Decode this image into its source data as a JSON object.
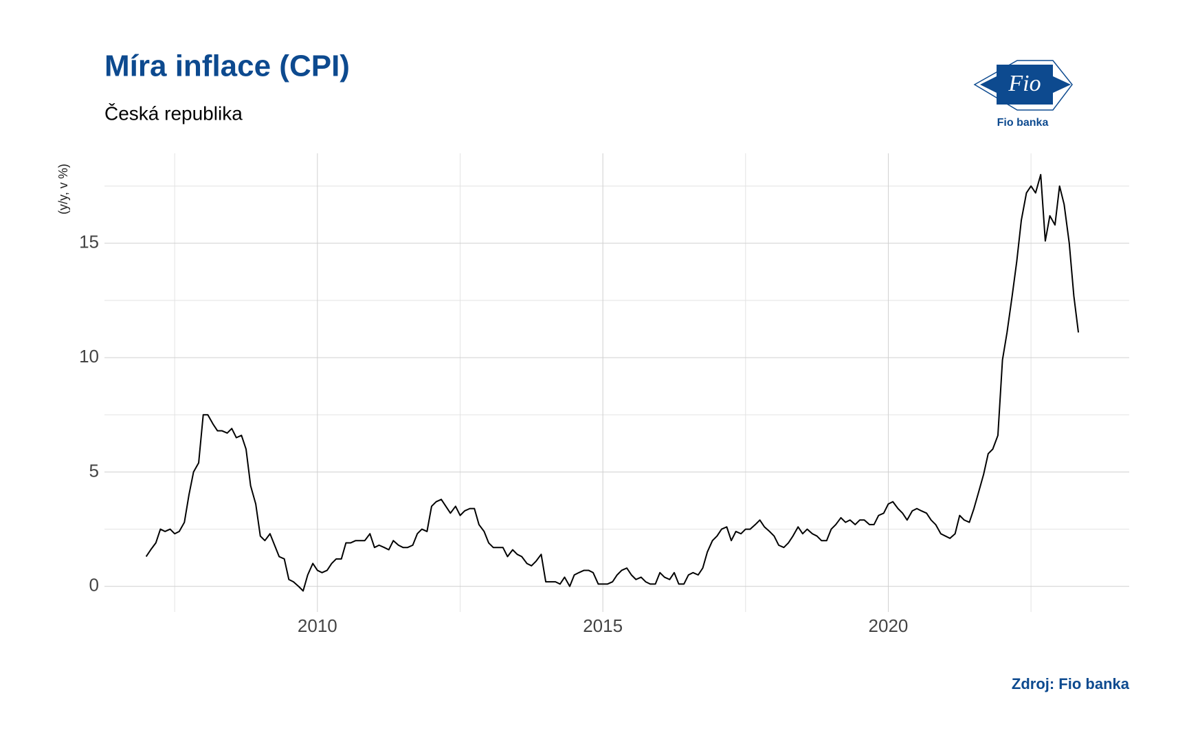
{
  "chart_data": {
    "type": "line",
    "title": "Míra inflace (CPI)",
    "subtitle": "Česká republika",
    "ylabel": "(y/y, v %)",
    "source": "Zdroj: Fio banka",
    "xlim": [
      2006.27,
      2024.22
    ],
    "ylim": [
      -1.12,
      18.93
    ],
    "xticks": [
      2010,
      2015,
      2020
    ],
    "yticks": [
      0,
      5,
      10,
      15
    ],
    "xminor_ticks": [
      2007.5,
      2012.5,
      2017.5,
      2022.5
    ],
    "yminor_ticks": [
      2.5,
      7.5,
      12.5,
      17.5
    ],
    "grid": true,
    "series": [
      {
        "color": "#000000",
        "x": [
          2007.0,
          2007.08,
          2007.17,
          2007.25,
          2007.33,
          2007.42,
          2007.5,
          2007.58,
          2007.67,
          2007.75,
          2007.83,
          2007.92,
          2008.0,
          2008.08,
          2008.17,
          2008.25,
          2008.33,
          2008.42,
          2008.5,
          2008.58,
          2008.67,
          2008.75,
          2008.83,
          2008.92,
          2009.0,
          2009.08,
          2009.17,
          2009.25,
          2009.33,
          2009.42,
          2009.5,
          2009.58,
          2009.67,
          2009.75,
          2009.83,
          2009.92,
          2010.0,
          2010.08,
          2010.17,
          2010.25,
          2010.33,
          2010.42,
          2010.5,
          2010.58,
          2010.67,
          2010.75,
          2010.83,
          2010.92,
          2011.0,
          2011.08,
          2011.17,
          2011.25,
          2011.33,
          2011.42,
          2011.5,
          2011.58,
          2011.67,
          2011.75,
          2011.83,
          2011.92,
          2012.0,
          2012.08,
          2012.17,
          2012.25,
          2012.33,
          2012.42,
          2012.5,
          2012.58,
          2012.67,
          2012.75,
          2012.83,
          2012.92,
          2013.0,
          2013.08,
          2013.17,
          2013.25,
          2013.33,
          2013.42,
          2013.5,
          2013.58,
          2013.67,
          2013.75,
          2013.83,
          2013.92,
          2014.0,
          2014.08,
          2014.17,
          2014.25,
          2014.33,
          2014.42,
          2014.5,
          2014.58,
          2014.67,
          2014.75,
          2014.83,
          2014.92,
          2015.0,
          2015.08,
          2015.17,
          2015.25,
          2015.33,
          2015.42,
          2015.5,
          2015.58,
          2015.67,
          2015.75,
          2015.83,
          2015.92,
          2016.0,
          2016.08,
          2016.17,
          2016.25,
          2016.33,
          2016.42,
          2016.5,
          2016.58,
          2016.67,
          2016.75,
          2016.83,
          2016.92,
          2017.0,
          2017.08,
          2017.17,
          2017.25,
          2017.33,
          2017.42,
          2017.5,
          2017.58,
          2017.67,
          2017.75,
          2017.83,
          2017.92,
          2018.0,
          2018.08,
          2018.17,
          2018.25,
          2018.33,
          2018.42,
          2018.5,
          2018.58,
          2018.67,
          2018.75,
          2018.83,
          2018.92,
          2019.0,
          2019.08,
          2019.17,
          2019.25,
          2019.33,
          2019.42,
          2019.5,
          2019.58,
          2019.67,
          2019.75,
          2019.83,
          2019.92,
          2020.0,
          2020.08,
          2020.17,
          2020.25,
          2020.33,
          2020.42,
          2020.5,
          2020.58,
          2020.67,
          2020.75,
          2020.83,
          2020.92,
          2021.0,
          2021.08,
          2021.17,
          2021.25,
          2021.33,
          2021.42,
          2021.5,
          2021.58,
          2021.67,
          2021.75,
          2021.83,
          2021.92,
          2022.0,
          2022.08,
          2022.17,
          2022.25,
          2022.33,
          2022.42,
          2022.5,
          2022.58,
          2022.67,
          2022.75,
          2022.83,
          2022.92,
          2023.0,
          2023.08,
          2023.17,
          2023.25,
          2023.33
        ],
        "values": [
          1.3,
          1.6,
          1.9,
          2.5,
          2.4,
          2.5,
          2.3,
          2.4,
          2.8,
          4.0,
          5.0,
          5.4,
          7.5,
          7.5,
          7.1,
          6.8,
          6.8,
          6.7,
          6.9,
          6.5,
          6.6,
          6.0,
          4.4,
          3.6,
          2.2,
          2.0,
          2.3,
          1.8,
          1.3,
          1.2,
          0.3,
          0.2,
          0.0,
          -0.2,
          0.5,
          1.0,
          0.7,
          0.6,
          0.7,
          1.0,
          1.2,
          1.2,
          1.9,
          1.9,
          2.0,
          2.0,
          2.0,
          2.3,
          1.7,
          1.8,
          1.7,
          1.6,
          2.0,
          1.8,
          1.7,
          1.7,
          1.8,
          2.3,
          2.5,
          2.4,
          3.5,
          3.7,
          3.8,
          3.5,
          3.2,
          3.5,
          3.1,
          3.3,
          3.4,
          3.4,
          2.7,
          2.4,
          1.9,
          1.7,
          1.7,
          1.7,
          1.3,
          1.6,
          1.4,
          1.3,
          1.0,
          0.9,
          1.1,
          1.4,
          0.2,
          0.2,
          0.2,
          0.1,
          0.4,
          0.0,
          0.5,
          0.6,
          0.7,
          0.7,
          0.6,
          0.1,
          0.1,
          0.1,
          0.2,
          0.5,
          0.7,
          0.8,
          0.5,
          0.3,
          0.4,
          0.2,
          0.1,
          0.1,
          0.6,
          0.4,
          0.3,
          0.6,
          0.1,
          0.1,
          0.5,
          0.6,
          0.5,
          0.8,
          1.5,
          2.0,
          2.2,
          2.5,
          2.6,
          2.0,
          2.4,
          2.3,
          2.5,
          2.5,
          2.7,
          2.9,
          2.6,
          2.4,
          2.2,
          1.8,
          1.7,
          1.9,
          2.2,
          2.6,
          2.3,
          2.5,
          2.3,
          2.2,
          2.0,
          2.0,
          2.5,
          2.7,
          3.0,
          2.8,
          2.9,
          2.7,
          2.9,
          2.9,
          2.7,
          2.7,
          3.1,
          3.2,
          3.6,
          3.7,
          3.4,
          3.2,
          2.9,
          3.3,
          3.4,
          3.3,
          3.2,
          2.9,
          2.7,
          2.3,
          2.2,
          2.1,
          2.3,
          3.1,
          2.9,
          2.8,
          3.4,
          4.1,
          4.9,
          5.8,
          6.0,
          6.6,
          9.9,
          11.1,
          12.7,
          14.2,
          16.0,
          17.2,
          17.5,
          17.2,
          18.0,
          15.1,
          16.2,
          15.8,
          17.5,
          16.7,
          15.0,
          12.7,
          11.1
        ]
      }
    ]
  },
  "logo": {
    "mark": "Fio",
    "name": "Fio banka"
  }
}
